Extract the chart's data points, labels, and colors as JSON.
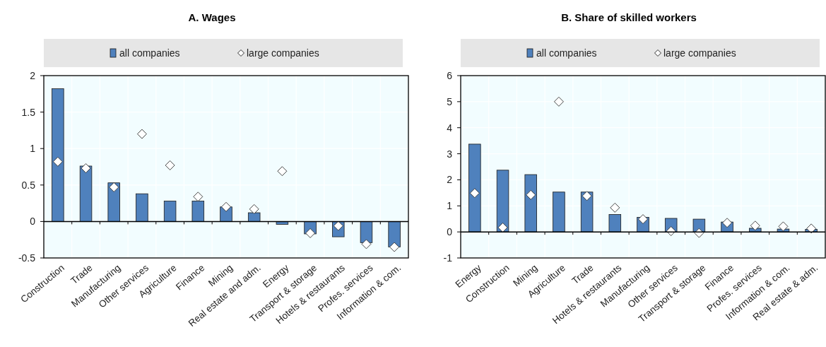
{
  "chart_data": [
    {
      "type": "bar",
      "title": "A. Wages",
      "categories": [
        "Construction",
        "Trade",
        "Manufacturing",
        "Other services",
        "Agriculture",
        "Finance",
        "Mining",
        "Real estate and adm.",
        "Energy",
        "Transport & storage",
        "Hotels & restaurants",
        "Profes. services",
        "Information & com."
      ],
      "series": [
        {
          "name": "all companies",
          "color": "#4f81bd",
          "values": [
            1.82,
            0.76,
            0.53,
            0.38,
            0.28,
            0.28,
            0.2,
            0.12,
            -0.04,
            -0.17,
            -0.21,
            -0.29,
            -0.35
          ]
        },
        {
          "name": "large companies",
          "type": "scatter",
          "color": "#ffffff",
          "marker": "diamond",
          "values": [
            0.82,
            0.73,
            0.47,
            1.2,
            0.77,
            0.34,
            0.2,
            0.17,
            0.69,
            -0.16,
            -0.06,
            -0.31,
            -0.35
          ]
        }
      ],
      "ylim": [
        -0.5,
        2
      ],
      "yticks": [
        -0.5,
        0,
        0.5,
        1,
        1.5,
        2
      ],
      "grid": true,
      "legend": "top"
    },
    {
      "type": "bar",
      "title": "B. Share of skilled workers",
      "categories": [
        "Energy",
        "Construction",
        "Mining",
        "Agriculture",
        "Trade",
        "Hotels & restaurants",
        "Manufacturing",
        "Other services",
        "Transport & storage",
        "Finance",
        "Profes. services",
        "Information & com.",
        "Real estate & adm."
      ],
      "series": [
        {
          "name": "all companies",
          "color": "#4f81bd",
          "values": [
            3.37,
            2.37,
            2.2,
            1.53,
            1.53,
            0.67,
            0.56,
            0.52,
            0.49,
            0.38,
            0.14,
            0.11,
            0.1
          ]
        },
        {
          "name": "large companies",
          "type": "scatter",
          "color": "#ffffff",
          "marker": "diamond",
          "values": [
            1.49,
            0.17,
            1.42,
            5.0,
            1.38,
            0.93,
            0.49,
            0.03,
            -0.04,
            0.35,
            0.24,
            0.21,
            0.13
          ]
        }
      ],
      "ylim": [
        -1,
        6
      ],
      "yticks": [
        -1,
        0,
        1,
        2,
        3,
        4,
        5,
        6
      ],
      "grid": true,
      "legend": "top"
    }
  ]
}
